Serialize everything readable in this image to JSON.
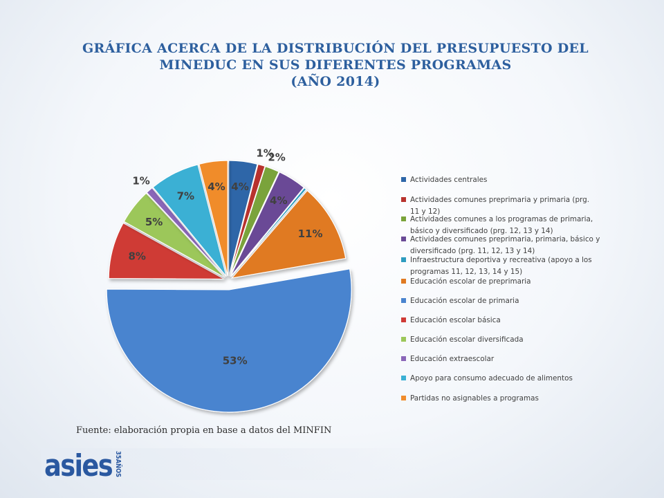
{
  "title": {
    "line1": "GRÁFICA ACERCA DE LA DISTRIBUCIÓN DEL PRESUPUESTO DEL",
    "line2": "MINEDUC EN SUS DIFERENTES PROGRAMAS",
    "line3": "(AÑO 2014)"
  },
  "chart_data": {
    "type": "pie",
    "categories": [
      "Actividades centrales",
      "Actividades comunes preprimaria y primaria (prg. 11 y 12)",
      "Actividades comunes a los programas de primaria, básico y diversificado (prg. 12, 13 y 14)",
      "Actividades comunes preprimaria, primaria, básico y diversificado (prg. 11, 12, 13 y 14)",
      "Infraestructura deportiva y recreativa (apoyo a los programas 11, 12, 13, 14 y 15)",
      "Educación escolar de preprimaria",
      "Educación escolar de primaria",
      "Educación escolar básica",
      "Educación escolar diversificada",
      "Educación extraescolar",
      "Apoyo para consumo adecuado de alimentos",
      "Partidas no asignables a programas"
    ],
    "values": [
      4,
      1,
      2,
      4,
      0,
      11,
      53,
      8,
      5,
      1,
      7,
      4
    ],
    "data_labels": [
      "4%",
      "1%",
      "2%",
      "4%",
      "",
      "11%",
      "53%",
      "8%",
      "5%",
      "1%",
      "7%",
      "4%"
    ],
    "colors": [
      "#2e66a8",
      "#b8332e",
      "#7aa33a",
      "#6a4a96",
      "#2e9cbf",
      "#e07a22",
      "#4a84cf",
      "#cf3a36",
      "#9cc75a",
      "#8a66b8",
      "#3bb0d4",
      "#f08c2c"
    ],
    "legend_position": "right",
    "exploded": true
  },
  "source": "Fuente: elaboración propia en base a datos del MINFIN",
  "logo": {
    "text": "asies",
    "badge": "35AÑOS",
    "color": "#2a58a0"
  }
}
